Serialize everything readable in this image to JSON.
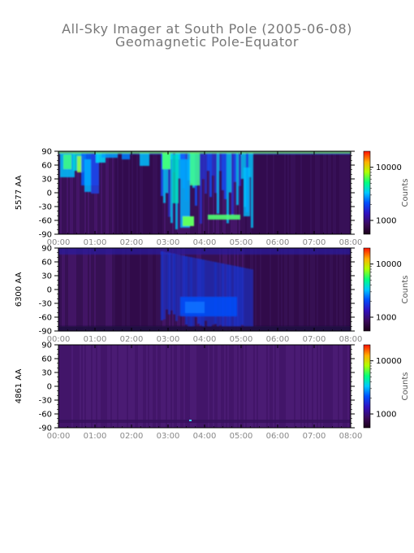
{
  "title": "All-Sky Imager at South Pole (2005-06-08)",
  "subtitle": "Geomagnetic Pole-Equator",
  "chart_data": [
    {
      "type": "heatmap",
      "ylabel": "5577 AA",
      "x_ticks": [
        "00:00",
        "01:00",
        "02:00",
        "03:00",
        "04:00",
        "05:00",
        "06:00",
        "07:00",
        "08:00"
      ],
      "xlim": [
        "00:00",
        "08:00"
      ],
      "y_ticks": [
        90,
        60,
        30,
        0,
        -30,
        -60,
        -90
      ],
      "ylim": [
        -90,
        90
      ],
      "colorbar": {
        "label": "Counts",
        "scale": "log",
        "ticks": [
          1000,
          10000
        ]
      }
    },
    {
      "type": "heatmap",
      "ylabel": "6300 AA",
      "x_ticks": [
        "00:00",
        "01:00",
        "02:00",
        "03:00",
        "04:00",
        "05:00",
        "06:00",
        "07:00",
        "08:00"
      ],
      "xlim": [
        "00:00",
        "08:00"
      ],
      "y_ticks": [
        90,
        60,
        30,
        0,
        -30,
        -60,
        -90
      ],
      "ylim": [
        -90,
        90
      ],
      "colorbar": {
        "label": "Counts",
        "scale": "log",
        "ticks": [
          1000,
          10000
        ]
      }
    },
    {
      "type": "heatmap",
      "ylabel": "4861 AA",
      "x_ticks": [
        "00:00",
        "01:00",
        "02:00",
        "03:00",
        "04:00",
        "05:00",
        "06:00",
        "07:00",
        "08:00"
      ],
      "xlim": [
        "00:00",
        "08:00"
      ],
      "y_ticks": [
        90,
        60,
        30,
        0,
        -30,
        -60,
        -90
      ],
      "ylim": [
        -90,
        90
      ],
      "colorbar": {
        "label": "Counts",
        "scale": "log",
        "ticks": [
          1000,
          10000
        ]
      }
    }
  ]
}
